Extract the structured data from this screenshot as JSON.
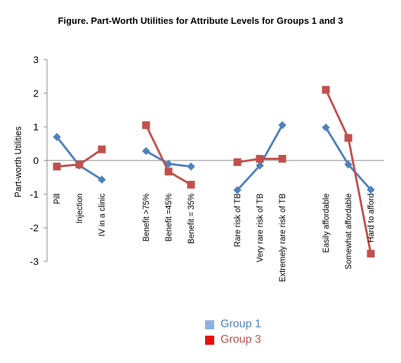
{
  "chart_data": {
    "type": "line",
    "title": "Figure. Part-Worth Utilities for Attribute Levels for Groups 1 and 3",
    "ylabel": "Part-worth Utilities",
    "ylim": [
      -3,
      3
    ],
    "yticks": [
      3,
      2,
      1,
      0,
      -1,
      -2,
      -3
    ],
    "groups": [
      [
        "Pill",
        "Injection",
        "IV in a clinic"
      ],
      [
        "Benefit  >75%",
        "Benefit  =45%",
        "Benefit  = 35%"
      ],
      [
        "Rare  risk of TB",
        "Very rare  risk of TB",
        "Extremely rare risk of TB"
      ],
      [
        "Easily affordable",
        "Somewhat  affordable",
        "Hard to afford"
      ]
    ],
    "series": [
      {
        "name": "Group 1",
        "color": "#4F81BD",
        "marker": "diamond",
        "values": [
          [
            0.7,
            -0.15,
            -0.57
          ],
          [
            0.28,
            -0.1,
            -0.18
          ],
          [
            -0.88,
            -0.15,
            1.05
          ],
          [
            0.98,
            -0.12,
            -0.87
          ]
        ]
      },
      {
        "name": "Group 3",
        "color": "#C0504D",
        "marker": "square",
        "values": [
          [
            -0.18,
            -0.12,
            0.33
          ],
          [
            1.05,
            -0.33,
            -0.72
          ],
          [
            -0.05,
            0.05,
            0.05
          ],
          [
            2.1,
            0.67,
            -2.77
          ]
        ]
      }
    ],
    "legend": {
      "position": "bottom"
    },
    "legend_swatch_colors": [
      "#8DB4E2",
      "#E8100F"
    ],
    "legend_text_colors": [
      "#4F81BD",
      "#C0504D"
    ],
    "grid": false
  }
}
